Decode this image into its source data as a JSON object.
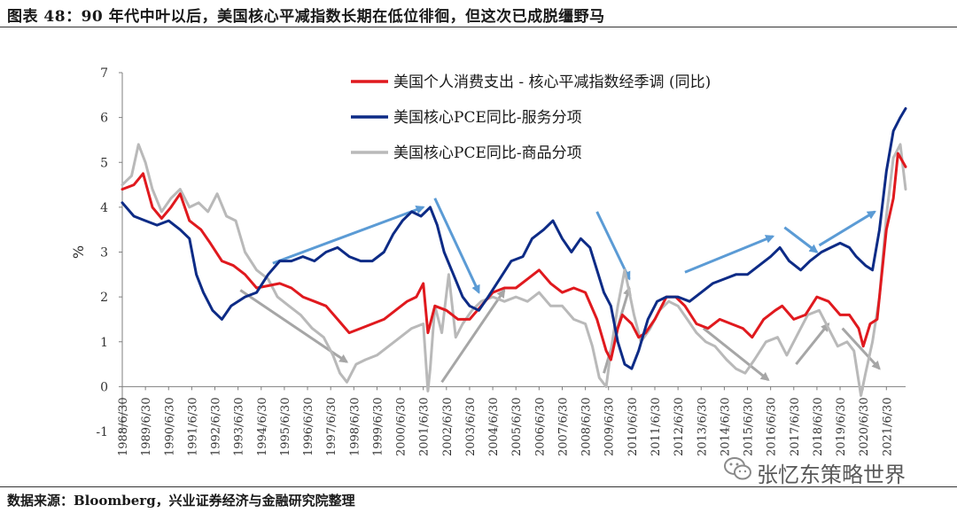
{
  "header": {
    "title": "图表 48：90 年代中叶以后，美国核心平减指数长期在低位徘徊，但这次已成脱缰野马"
  },
  "footer": {
    "source": "数据来源：Bloomberg，兴业证券经济与金融研究院整理"
  },
  "watermark": {
    "text": "张忆东策略世界",
    "icon": "wechat-icon"
  },
  "chart_data": {
    "type": "line",
    "title": "",
    "xlabel": "",
    "ylabel": "%",
    "ylim": [
      -1,
      7
    ],
    "yticks": [
      -1,
      0,
      1,
      2,
      3,
      4,
      5,
      6,
      7
    ],
    "x_start": 1988.5,
    "x_end": 2022.33,
    "x_tick_labels": [
      "1988/6/30",
      "1989/6/30",
      "1990/6/30",
      "1991/6/30",
      "1992/6/30",
      "1993/6/30",
      "1994/6/30",
      "1995/6/30",
      "1996/6/30",
      "1997/6/30",
      "1998/6/30",
      "1999/6/30",
      "2000/6/30",
      "2001/6/30",
      "2002/6/30",
      "2003/6/30",
      "2004/6/30",
      "2005/6/30",
      "2006/6/30",
      "2007/6/30",
      "2008/6/30",
      "2009/6/30",
      "2010/6/30",
      "2011/6/30",
      "2012/6/30",
      "2013/6/30",
      "2014/6/30",
      "2015/6/30",
      "2016/6/30",
      "2017/6/30",
      "2018/6/30",
      "2019/6/30",
      "2020/6/30",
      "2021/6/30"
    ],
    "legend_position": "top-center",
    "series": [
      {
        "name": "美国个人消费支出 - 核心平减指数经季调 (同比)",
        "color": "#e0191e",
        "points": [
          [
            1988.5,
            4.4
          ],
          [
            1989.0,
            4.5
          ],
          [
            1989.4,
            4.75
          ],
          [
            1989.8,
            4.0
          ],
          [
            1990.2,
            3.75
          ],
          [
            1990.6,
            4.0
          ],
          [
            1991.0,
            4.3
          ],
          [
            1991.4,
            3.7
          ],
          [
            1991.9,
            3.5
          ],
          [
            1992.3,
            3.2
          ],
          [
            1992.8,
            2.8
          ],
          [
            1993.3,
            2.7
          ],
          [
            1993.8,
            2.5
          ],
          [
            1994.3,
            2.2
          ],
          [
            1994.8,
            2.25
          ],
          [
            1995.3,
            2.3
          ],
          [
            1995.8,
            2.2
          ],
          [
            1996.3,
            2.0
          ],
          [
            1996.8,
            1.9
          ],
          [
            1997.3,
            1.8
          ],
          [
            1997.8,
            1.5
          ],
          [
            1998.3,
            1.2
          ],
          [
            1998.8,
            1.3
          ],
          [
            1999.3,
            1.4
          ],
          [
            1999.8,
            1.5
          ],
          [
            2000.3,
            1.7
          ],
          [
            2000.8,
            1.9
          ],
          [
            2001.2,
            2.0
          ],
          [
            2001.5,
            2.3
          ],
          [
            2001.7,
            1.2
          ],
          [
            2002.0,
            1.8
          ],
          [
            2002.5,
            1.7
          ],
          [
            2003.0,
            1.5
          ],
          [
            2003.5,
            1.5
          ],
          [
            2004.0,
            1.8
          ],
          [
            2004.5,
            2.1
          ],
          [
            2005.0,
            2.2
          ],
          [
            2005.5,
            2.2
          ],
          [
            2006.0,
            2.4
          ],
          [
            2006.5,
            2.6
          ],
          [
            2007.0,
            2.3
          ],
          [
            2007.5,
            2.1
          ],
          [
            2008.0,
            2.2
          ],
          [
            2008.5,
            2.1
          ],
          [
            2009.0,
            1.5
          ],
          [
            2009.4,
            0.8
          ],
          [
            2009.6,
            0.6
          ],
          [
            2009.9,
            1.3
          ],
          [
            2010.1,
            1.6
          ],
          [
            2010.5,
            1.4
          ],
          [
            2010.8,
            1.1
          ],
          [
            2011.1,
            1.2
          ],
          [
            2011.5,
            1.5
          ],
          [
            2012.0,
            2.0
          ],
          [
            2012.4,
            2.0
          ],
          [
            2012.8,
            1.8
          ],
          [
            2013.3,
            1.4
          ],
          [
            2013.8,
            1.3
          ],
          [
            2014.3,
            1.5
          ],
          [
            2014.8,
            1.4
          ],
          [
            2015.3,
            1.3
          ],
          [
            2015.7,
            1.1
          ],
          [
            2016.2,
            1.5
          ],
          [
            2016.7,
            1.7
          ],
          [
            2017.0,
            1.8
          ],
          [
            2017.5,
            1.5
          ],
          [
            2018.0,
            1.6
          ],
          [
            2018.5,
            2.0
          ],
          [
            2019.0,
            1.9
          ],
          [
            2019.5,
            1.6
          ],
          [
            2019.9,
            1.6
          ],
          [
            2020.3,
            1.3
          ],
          [
            2020.5,
            0.9
          ],
          [
            2020.8,
            1.4
          ],
          [
            2021.1,
            1.5
          ],
          [
            2021.5,
            3.5
          ],
          [
            2021.8,
            4.2
          ],
          [
            2022.0,
            5.2
          ],
          [
            2022.33,
            4.9
          ]
        ]
      },
      {
        "name": "美国核心PCE同比-服务分项",
        "color": "#0d2b86",
        "points": [
          [
            1988.5,
            4.1
          ],
          [
            1989.0,
            3.8
          ],
          [
            1989.5,
            3.7
          ],
          [
            1990.0,
            3.6
          ],
          [
            1990.5,
            3.7
          ],
          [
            1991.0,
            3.5
          ],
          [
            1991.4,
            3.3
          ],
          [
            1991.7,
            2.5
          ],
          [
            1992.0,
            2.1
          ],
          [
            1992.4,
            1.7
          ],
          [
            1992.8,
            1.5
          ],
          [
            1993.2,
            1.8
          ],
          [
            1993.8,
            2.0
          ],
          [
            1994.3,
            2.1
          ],
          [
            1994.8,
            2.5
          ],
          [
            1995.3,
            2.8
          ],
          [
            1995.8,
            2.8
          ],
          [
            1996.3,
            2.9
          ],
          [
            1996.8,
            2.8
          ],
          [
            1997.3,
            3.0
          ],
          [
            1997.8,
            3.1
          ],
          [
            1998.3,
            2.9
          ],
          [
            1998.8,
            2.8
          ],
          [
            1999.3,
            2.8
          ],
          [
            1999.8,
            3.0
          ],
          [
            2000.2,
            3.4
          ],
          [
            2000.6,
            3.7
          ],
          [
            2001.0,
            3.9
          ],
          [
            2001.4,
            3.8
          ],
          [
            2001.8,
            4.0
          ],
          [
            2002.1,
            3.6
          ],
          [
            2002.4,
            3.0
          ],
          [
            2002.8,
            2.5
          ],
          [
            2003.2,
            2.0
          ],
          [
            2003.5,
            1.8
          ],
          [
            2003.9,
            1.7
          ],
          [
            2004.3,
            2.0
          ],
          [
            2004.8,
            2.4
          ],
          [
            2005.3,
            2.8
          ],
          [
            2005.8,
            2.9
          ],
          [
            2006.2,
            3.3
          ],
          [
            2006.7,
            3.5
          ],
          [
            2007.1,
            3.7
          ],
          [
            2007.5,
            3.3
          ],
          [
            2007.9,
            3.0
          ],
          [
            2008.3,
            3.3
          ],
          [
            2008.7,
            3.1
          ],
          [
            2009.0,
            2.6
          ],
          [
            2009.3,
            2.1
          ],
          [
            2009.6,
            1.8
          ],
          [
            2009.9,
            1.0
          ],
          [
            2010.2,
            0.5
          ],
          [
            2010.5,
            0.4
          ],
          [
            2010.8,
            0.8
          ],
          [
            2011.2,
            1.5
          ],
          [
            2011.6,
            1.9
          ],
          [
            2012.0,
            2.0
          ],
          [
            2012.5,
            2.0
          ],
          [
            2013.0,
            1.9
          ],
          [
            2013.5,
            2.1
          ],
          [
            2014.0,
            2.3
          ],
          [
            2014.5,
            2.4
          ],
          [
            2015.0,
            2.5
          ],
          [
            2015.5,
            2.5
          ],
          [
            2016.0,
            2.7
          ],
          [
            2016.5,
            2.9
          ],
          [
            2016.9,
            3.1
          ],
          [
            2017.3,
            2.8
          ],
          [
            2017.8,
            2.6
          ],
          [
            2018.2,
            2.8
          ],
          [
            2018.7,
            3.0
          ],
          [
            2019.1,
            3.1
          ],
          [
            2019.5,
            3.2
          ],
          [
            2019.9,
            3.1
          ],
          [
            2020.2,
            2.9
          ],
          [
            2020.6,
            2.7
          ],
          [
            2020.9,
            2.6
          ],
          [
            2021.2,
            3.5
          ],
          [
            2021.5,
            4.8
          ],
          [
            2021.8,
            5.7
          ],
          [
            2022.1,
            6.0
          ],
          [
            2022.33,
            6.2
          ]
        ]
      },
      {
        "name": "美国核心PCE同比-商品分项",
        "color": "#b9b9b9",
        "points": [
          [
            1988.5,
            4.5
          ],
          [
            1988.9,
            4.7
          ],
          [
            1989.2,
            5.4
          ],
          [
            1989.5,
            5.0
          ],
          [
            1989.8,
            4.4
          ],
          [
            1990.2,
            3.9
          ],
          [
            1990.6,
            4.2
          ],
          [
            1991.0,
            4.4
          ],
          [
            1991.4,
            4.0
          ],
          [
            1991.8,
            4.1
          ],
          [
            1992.2,
            3.9
          ],
          [
            1992.6,
            4.3
          ],
          [
            1993.0,
            3.8
          ],
          [
            1993.4,
            3.7
          ],
          [
            1993.8,
            3.0
          ],
          [
            1994.3,
            2.6
          ],
          [
            1994.8,
            2.4
          ],
          [
            1995.2,
            2.0
          ],
          [
            1995.7,
            1.8
          ],
          [
            1996.2,
            1.6
          ],
          [
            1996.7,
            1.3
          ],
          [
            1997.2,
            1.1
          ],
          [
            1997.6,
            0.7
          ],
          [
            1997.9,
            0.3
          ],
          [
            1998.2,
            0.1
          ],
          [
            1998.6,
            0.5
          ],
          [
            1999.0,
            0.6
          ],
          [
            1999.5,
            0.7
          ],
          [
            2000.0,
            0.9
          ],
          [
            2000.5,
            1.1
          ],
          [
            2001.0,
            1.3
          ],
          [
            2001.5,
            1.4
          ],
          [
            2001.7,
            -0.1
          ],
          [
            2001.8,
            0.4
          ],
          [
            2002.0,
            1.8
          ],
          [
            2002.3,
            1.2
          ],
          [
            2002.6,
            2.5
          ],
          [
            2002.9,
            1.1
          ],
          [
            2003.2,
            1.4
          ],
          [
            2003.6,
            1.7
          ],
          [
            2004.0,
            1.9
          ],
          [
            2004.5,
            2.0
          ],
          [
            2005.0,
            1.9
          ],
          [
            2005.5,
            2.0
          ],
          [
            2006.0,
            1.9
          ],
          [
            2006.5,
            2.1
          ],
          [
            2007.0,
            1.8
          ],
          [
            2007.5,
            1.8
          ],
          [
            2008.0,
            1.5
          ],
          [
            2008.5,
            1.4
          ],
          [
            2008.8,
            0.9
          ],
          [
            2009.1,
            0.2
          ],
          [
            2009.4,
            0.0
          ],
          [
            2009.6,
            0.8
          ],
          [
            2009.9,
            1.8
          ],
          [
            2010.2,
            2.6
          ],
          [
            2010.6,
            1.6
          ],
          [
            2010.9,
            1.0
          ],
          [
            2011.3,
            1.3
          ],
          [
            2011.7,
            1.7
          ],
          [
            2012.1,
            1.9
          ],
          [
            2012.5,
            1.8
          ],
          [
            2012.9,
            1.5
          ],
          [
            2013.3,
            1.2
          ],
          [
            2013.7,
            1.0
          ],
          [
            2014.1,
            0.9
          ],
          [
            2014.6,
            0.6
          ],
          [
            2015.0,
            0.4
          ],
          [
            2015.4,
            0.3
          ],
          [
            2015.8,
            0.6
          ],
          [
            2016.3,
            1.0
          ],
          [
            2016.8,
            1.1
          ],
          [
            2017.2,
            0.7
          ],
          [
            2017.7,
            1.2
          ],
          [
            2018.1,
            1.6
          ],
          [
            2018.6,
            1.7
          ],
          [
            2019.0,
            1.3
          ],
          [
            2019.4,
            0.9
          ],
          [
            2019.8,
            1.0
          ],
          [
            2020.1,
            0.8
          ],
          [
            2020.4,
            -0.2
          ],
          [
            2020.6,
            0.3
          ],
          [
            2020.9,
            1.0
          ],
          [
            2021.2,
            2.0
          ],
          [
            2021.5,
            3.8
          ],
          [
            2021.8,
            5.1
          ],
          [
            2022.1,
            5.4
          ],
          [
            2022.33,
            4.4
          ]
        ]
      }
    ],
    "annotations": [
      {
        "type": "arrow",
        "color": "#5b9bd5",
        "from": [
          1995.0,
          2.75
        ],
        "to": [
          2001.5,
          4.0
        ]
      },
      {
        "type": "arrow",
        "color": "#5b9bd5",
        "from": [
          2002.0,
          4.2
        ],
        "to": [
          2003.9,
          2.1
        ]
      },
      {
        "type": "arrow",
        "color": "#5b9bd5",
        "from": [
          2009.0,
          3.9
        ],
        "to": [
          2010.4,
          2.4
        ]
      },
      {
        "type": "arrow",
        "color": "#5b9bd5",
        "from": [
          2012.8,
          2.55
        ],
        "to": [
          2016.6,
          3.35
        ]
      },
      {
        "type": "arrow",
        "color": "#5b9bd5",
        "from": [
          2017.1,
          3.55
        ],
        "to": [
          2018.5,
          3.0
        ]
      },
      {
        "type": "arrow",
        "color": "#5b9bd5",
        "from": [
          2018.6,
          3.15
        ],
        "to": [
          2021.0,
          3.9
        ]
      },
      {
        "type": "arrow",
        "color": "#a6a6a6",
        "from": [
          1993.6,
          2.15
        ],
        "to": [
          1998.2,
          0.55
        ]
      },
      {
        "type": "arrow",
        "color": "#a6a6a6",
        "from": [
          2002.3,
          0.1
        ],
        "to": [
          2005.0,
          2.15
        ]
      },
      {
        "type": "arrow",
        "color": "#a6a6a6",
        "from": [
          2009.3,
          0.3
        ],
        "to": [
          2010.4,
          2.2
        ]
      },
      {
        "type": "arrow",
        "color": "#a6a6a6",
        "from": [
          2013.6,
          1.3
        ],
        "to": [
          2016.4,
          0.15
        ]
      },
      {
        "type": "arrow",
        "color": "#a6a6a6",
        "from": [
          2017.6,
          0.5
        ],
        "to": [
          2019.0,
          1.4
        ]
      },
      {
        "type": "arrow",
        "color": "#a6a6a6",
        "from": [
          2019.6,
          1.3
        ],
        "to": [
          2021.2,
          0.4
        ]
      }
    ]
  }
}
